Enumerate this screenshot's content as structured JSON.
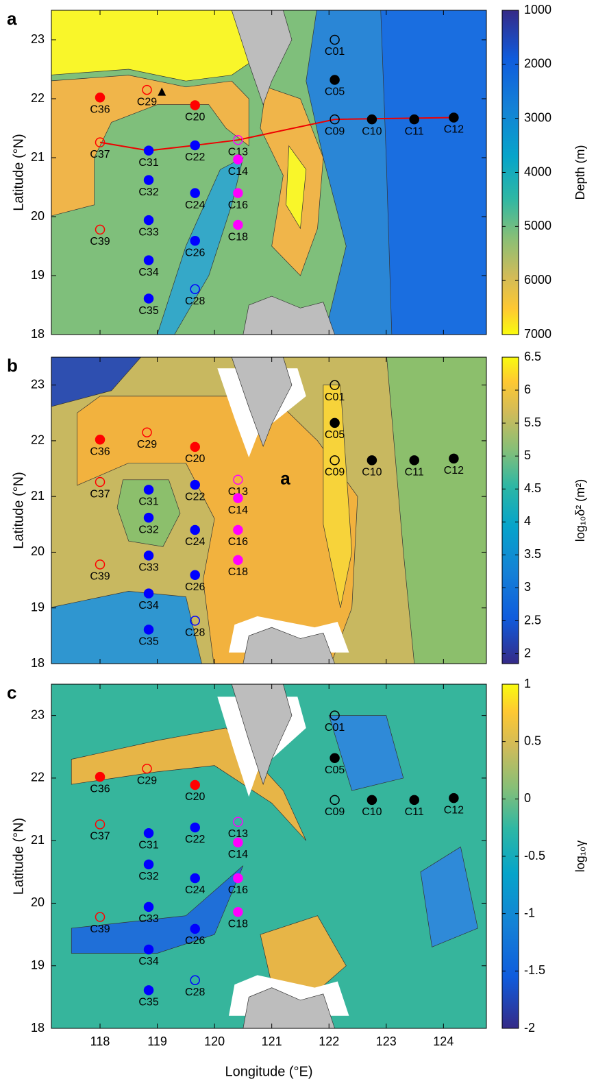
{
  "chart_data": [
    {
      "type": "map",
      "panel": "a",
      "ylabel": "Latitude (°N)",
      "colorbar_label": "Depth (m)",
      "xlim": [
        117.15,
        124.75
      ],
      "xticks": [
        118,
        119,
        120,
        121,
        122,
        123,
        124
      ],
      "ylim": [
        18,
        23.5
      ],
      "yticks": [
        18,
        19,
        20,
        21,
        22,
        23
      ],
      "clim": [
        1000,
        7000
      ],
      "cticks": [
        1000,
        2000,
        3000,
        4000,
        5000,
        6000,
        7000
      ],
      "colorbar_reversed": true,
      "stations": [
        {
          "name": "C01",
          "lon": 122.1,
          "lat": 23.0,
          "color": "#000000",
          "filled": false
        },
        {
          "name": "C05",
          "lon": 122.1,
          "lat": 22.32,
          "color": "#000000",
          "filled": true
        },
        {
          "name": "C09",
          "lon": 122.1,
          "lat": 21.65,
          "color": "#000000",
          "filled": false
        },
        {
          "name": "C10",
          "lon": 122.75,
          "lat": 21.65,
          "color": "#000000",
          "filled": true
        },
        {
          "name": "C11",
          "lon": 123.49,
          "lat": 21.65,
          "color": "#000000",
          "filled": true
        },
        {
          "name": "C12",
          "lon": 124.18,
          "lat": 21.68,
          "color": "#000000",
          "filled": true
        },
        {
          "name": "C13",
          "lon": 120.41,
          "lat": 21.3,
          "color": "#ff00ff",
          "filled": false
        },
        {
          "name": "C14",
          "lon": 120.41,
          "lat": 20.97,
          "color": "#ff00ff",
          "filled": true
        },
        {
          "name": "C16",
          "lon": 120.41,
          "lat": 20.4,
          "color": "#ff00ff",
          "filled": true
        },
        {
          "name": "C18",
          "lon": 120.41,
          "lat": 19.86,
          "color": "#ff00ff",
          "filled": true
        },
        {
          "name": "C20",
          "lon": 119.66,
          "lat": 21.89,
          "color": "#ff0000",
          "filled": true
        },
        {
          "name": "C22",
          "lon": 119.66,
          "lat": 21.21,
          "color": "#0000ff",
          "filled": true
        },
        {
          "name": "C24",
          "lon": 119.66,
          "lat": 20.4,
          "color": "#0000ff",
          "filled": true
        },
        {
          "name": "C26",
          "lon": 119.66,
          "lat": 19.59,
          "color": "#0000ff",
          "filled": true
        },
        {
          "name": "C28",
          "lon": 119.66,
          "lat": 18.77,
          "color": "#0000ff",
          "filled": false
        },
        {
          "name": "C29",
          "lon": 118.82,
          "lat": 22.15,
          "color": "#ff0000",
          "filled": false
        },
        {
          "name": "C31",
          "lon": 118.85,
          "lat": 21.12,
          "color": "#0000ff",
          "filled": true
        },
        {
          "name": "C32",
          "lon": 118.85,
          "lat": 20.62,
          "color": "#0000ff",
          "filled": true
        },
        {
          "name": "C33",
          "lon": 118.85,
          "lat": 19.94,
          "color": "#0000ff",
          "filled": true
        },
        {
          "name": "C34",
          "lon": 118.85,
          "lat": 19.26,
          "color": "#0000ff",
          "filled": true
        },
        {
          "name": "C35",
          "lon": 118.85,
          "lat": 18.61,
          "color": "#0000ff",
          "filled": true
        },
        {
          "name": "C36",
          "lon": 118.0,
          "lat": 22.02,
          "color": "#ff0000",
          "filled": true
        },
        {
          "name": "C37",
          "lon": 118.0,
          "lat": 21.26,
          "color": "#ff0000",
          "filled": false
        },
        {
          "name": "C39",
          "lon": 118.0,
          "lat": 19.78,
          "color": "#ff0000",
          "filled": false
        }
      ]
    },
    {
      "type": "map",
      "panel": "b",
      "ylabel": "Latitude (°N)",
      "colorbar_label": "log₁₀δ² (m²)",
      "annotation": "a",
      "xlim": [
        117.15,
        124.75
      ],
      "xticks": [
        118,
        119,
        120,
        121,
        122,
        123,
        124
      ],
      "ylim": [
        18,
        23.5
      ],
      "yticks": [
        18,
        19,
        20,
        21,
        22,
        23
      ],
      "clim": [
        1.85,
        6.5
      ],
      "cticks": [
        2,
        2.5,
        3,
        3.5,
        4,
        4.5,
        5,
        5.5,
        6,
        6.5
      ],
      "colorbar_reversed": false,
      "stations": [
        {
          "name": "C01",
          "lon": 122.1,
          "lat": 23.0,
          "color": "#000000",
          "filled": false
        },
        {
          "name": "C05",
          "lon": 122.1,
          "lat": 22.32,
          "color": "#000000",
          "filled": true
        },
        {
          "name": "C09",
          "lon": 122.1,
          "lat": 21.65,
          "color": "#000000",
          "filled": false
        },
        {
          "name": "C10",
          "lon": 122.75,
          "lat": 21.65,
          "color": "#000000",
          "filled": true
        },
        {
          "name": "C11",
          "lon": 123.49,
          "lat": 21.65,
          "color": "#000000",
          "filled": true
        },
        {
          "name": "C12",
          "lon": 124.18,
          "lat": 21.68,
          "color": "#000000",
          "filled": true
        },
        {
          "name": "C13",
          "lon": 120.41,
          "lat": 21.3,
          "color": "#ff00ff",
          "filled": false
        },
        {
          "name": "C14",
          "lon": 120.41,
          "lat": 20.97,
          "color": "#ff00ff",
          "filled": true
        },
        {
          "name": "C16",
          "lon": 120.41,
          "lat": 20.4,
          "color": "#ff00ff",
          "filled": true
        },
        {
          "name": "C18",
          "lon": 120.41,
          "lat": 19.86,
          "color": "#ff00ff",
          "filled": true
        },
        {
          "name": "C20",
          "lon": 119.66,
          "lat": 21.89,
          "color": "#ff0000",
          "filled": true
        },
        {
          "name": "C22",
          "lon": 119.66,
          "lat": 21.21,
          "color": "#0000ff",
          "filled": true
        },
        {
          "name": "C24",
          "lon": 119.66,
          "lat": 20.4,
          "color": "#0000ff",
          "filled": true
        },
        {
          "name": "C26",
          "lon": 119.66,
          "lat": 19.59,
          "color": "#0000ff",
          "filled": true
        },
        {
          "name": "C28",
          "lon": 119.66,
          "lat": 18.77,
          "color": "#0000ff",
          "filled": false
        },
        {
          "name": "C29",
          "lon": 118.82,
          "lat": 22.15,
          "color": "#ff0000",
          "filled": false
        },
        {
          "name": "C31",
          "lon": 118.85,
          "lat": 21.12,
          "color": "#0000ff",
          "filled": true
        },
        {
          "name": "C32",
          "lon": 118.85,
          "lat": 20.62,
          "color": "#0000ff",
          "filled": true
        },
        {
          "name": "C33",
          "lon": 118.85,
          "lat": 19.94,
          "color": "#0000ff",
          "filled": true
        },
        {
          "name": "C34",
          "lon": 118.85,
          "lat": 19.26,
          "color": "#0000ff",
          "filled": true
        },
        {
          "name": "C35",
          "lon": 118.85,
          "lat": 18.61,
          "color": "#0000ff",
          "filled": true
        },
        {
          "name": "C36",
          "lon": 118.0,
          "lat": 22.02,
          "color": "#ff0000",
          "filled": true
        },
        {
          "name": "C37",
          "lon": 118.0,
          "lat": 21.26,
          "color": "#ff0000",
          "filled": false
        },
        {
          "name": "C39",
          "lon": 118.0,
          "lat": 19.78,
          "color": "#ff0000",
          "filled": false
        }
      ]
    },
    {
      "type": "map",
      "panel": "c",
      "ylabel": "Latitude (°N)",
      "xlabel": "Longitude (°E)",
      "colorbar_label": "log₁₀γ",
      "xlim": [
        117.15,
        124.75
      ],
      "xticks": [
        118,
        119,
        120,
        121,
        122,
        123,
        124
      ],
      "ylim": [
        18,
        23.5
      ],
      "yticks": [
        18,
        19,
        20,
        21,
        22,
        23
      ],
      "clim": [
        -2,
        1
      ],
      "cticks": [
        -2,
        -1.5,
        -1,
        -0.5,
        0,
        0.5,
        1
      ],
      "colorbar_reversed": false,
      "stations": [
        {
          "name": "C01",
          "lon": 122.1,
          "lat": 23.0,
          "color": "#000000",
          "filled": false
        },
        {
          "name": "C05",
          "lon": 122.1,
          "lat": 22.32,
          "color": "#000000",
          "filled": true
        },
        {
          "name": "C09",
          "lon": 122.1,
          "lat": 21.65,
          "color": "#000000",
          "filled": false
        },
        {
          "name": "C10",
          "lon": 122.75,
          "lat": 21.65,
          "color": "#000000",
          "filled": true
        },
        {
          "name": "C11",
          "lon": 123.49,
          "lat": 21.65,
          "color": "#000000",
          "filled": true
        },
        {
          "name": "C12",
          "lon": 124.18,
          "lat": 21.68,
          "color": "#000000",
          "filled": true
        },
        {
          "name": "C13",
          "lon": 120.41,
          "lat": 21.3,
          "color": "#ff00ff",
          "filled": false
        },
        {
          "name": "C14",
          "lon": 120.41,
          "lat": 20.97,
          "color": "#ff00ff",
          "filled": true
        },
        {
          "name": "C16",
          "lon": 120.41,
          "lat": 20.4,
          "color": "#ff00ff",
          "filled": true
        },
        {
          "name": "C18",
          "lon": 120.41,
          "lat": 19.86,
          "color": "#ff00ff",
          "filled": true
        },
        {
          "name": "C20",
          "lon": 119.66,
          "lat": 21.89,
          "color": "#ff0000",
          "filled": true
        },
        {
          "name": "C22",
          "lon": 119.66,
          "lat": 21.21,
          "color": "#0000ff",
          "filled": true
        },
        {
          "name": "C24",
          "lon": 119.66,
          "lat": 20.4,
          "color": "#0000ff",
          "filled": true
        },
        {
          "name": "C26",
          "lon": 119.66,
          "lat": 19.59,
          "color": "#0000ff",
          "filled": true
        },
        {
          "name": "C28",
          "lon": 119.66,
          "lat": 18.77,
          "color": "#0000ff",
          "filled": false
        },
        {
          "name": "C29",
          "lon": 118.82,
          "lat": 22.15,
          "color": "#ff0000",
          "filled": false
        },
        {
          "name": "C31",
          "lon": 118.85,
          "lat": 21.12,
          "color": "#0000ff",
          "filled": true
        },
        {
          "name": "C32",
          "lon": 118.85,
          "lat": 20.62,
          "color": "#0000ff",
          "filled": true
        },
        {
          "name": "C33",
          "lon": 118.85,
          "lat": 19.94,
          "color": "#0000ff",
          "filled": true
        },
        {
          "name": "C34",
          "lon": 118.85,
          "lat": 19.26,
          "color": "#0000ff",
          "filled": true
        },
        {
          "name": "C35",
          "lon": 118.85,
          "lat": 18.61,
          "color": "#0000ff",
          "filled": true
        },
        {
          "name": "C36",
          "lon": 118.0,
          "lat": 22.02,
          "color": "#ff0000",
          "filled": true
        },
        {
          "name": "C37",
          "lon": 118.0,
          "lat": 21.26,
          "color": "#ff0000",
          "filled": false
        },
        {
          "name": "C39",
          "lon": 118.0,
          "lat": 19.78,
          "color": "#ff0000",
          "filled": false
        }
      ]
    }
  ]
}
